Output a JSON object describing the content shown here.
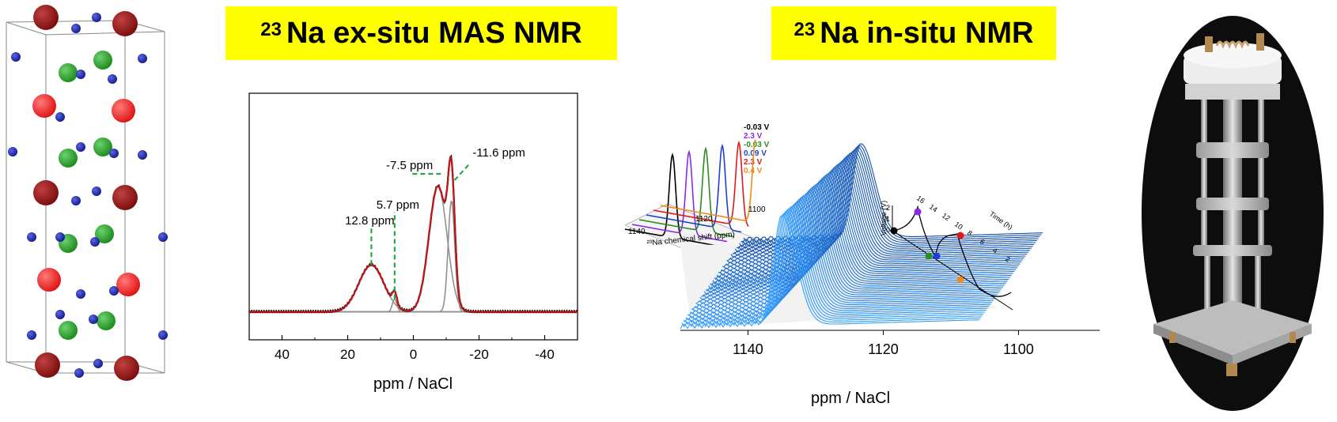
{
  "banners": {
    "left": {
      "isotope": "23",
      "text": "Na ex-situ MAS NMR"
    },
    "right": {
      "isotope": "23",
      "text": "Na in-situ NMR"
    }
  },
  "colors": {
    "banner": "#ffff00",
    "experimental": "#000000",
    "fit_total": "#c0161a",
    "components": "#909090",
    "annotation": "#22aa44",
    "na_atom": "#101a8c",
    "o_atom_dark": "#7a0c0c",
    "o_atom_red": "#e01010",
    "green_atom": "#1a8a1a"
  },
  "chart_data": [
    {
      "type": "line",
      "name": "ex-situ MAS spectrum",
      "xlabel": "ppm / NaCl",
      "xlim": [
        50,
        -50
      ],
      "xticks": [
        40,
        20,
        0,
        -20,
        -40
      ],
      "peak_annotations": [
        {
          "label": "12.8 ppm",
          "position": 12.8
        },
        {
          "label": "5.7 ppm",
          "position": 5.7
        },
        {
          "label": "-7.5 ppm",
          "position": -7.5
        },
        {
          "label": "-11.6 ppm",
          "position": -11.6
        }
      ],
      "components": [
        {
          "center": 12.8,
          "height": 0.22,
          "width": 9
        },
        {
          "center": 5.7,
          "height": 0.06,
          "width": 1.6
        },
        {
          "center": -7.5,
          "height": 0.59,
          "width": 6.5
        },
        {
          "center": -11.6,
          "height": 0.52,
          "width": 2.4
        }
      ],
      "baseline": 0.02
    },
    {
      "type": "line",
      "name": "in-situ spectra waterfall",
      "xlabel": "ppm / NaCl",
      "xticks": [
        1140,
        1120,
        1100
      ],
      "xlim": [
        1150,
        1088
      ]
    },
    {
      "type": "line",
      "name": "inset stacked spectra",
      "xlabel": "²³Na chemical shift (ppm)",
      "xticks": [
        1140,
        1120,
        1100
      ],
      "legend": [
        {
          "label": "-0.03 V",
          "color": "#000000"
        },
        {
          "label": "2.3 V",
          "color": "#8a2be2"
        },
        {
          "label": "-0.03 V",
          "color": "#2e8b22"
        },
        {
          "label": "0.09 V",
          "color": "#1f3fd0"
        },
        {
          "label": "2.3 V",
          "color": "#e0181a"
        },
        {
          "label": "0.4 V",
          "color": "#f08a1a"
        }
      ]
    },
    {
      "type": "line",
      "name": "voltage profile inset",
      "ylabel": "Voltage (V)",
      "xlabel": "Time (h)",
      "yticks": [
        "0",
        "1",
        "2"
      ],
      "xticks": [
        "16",
        "14",
        "12",
        "10",
        "8",
        "6",
        "4",
        "2"
      ]
    }
  ]
}
